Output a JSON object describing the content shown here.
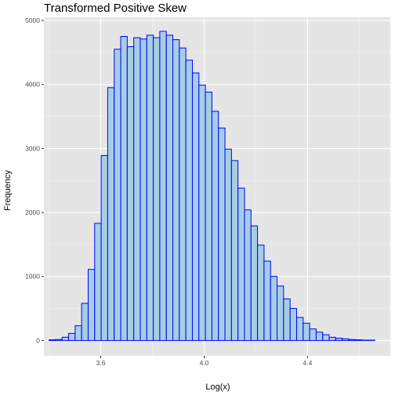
{
  "chart_data": {
    "type": "bar",
    "title": "Transformed Positive Skew",
    "xlabel": "Log(x)",
    "ylabel": "Frequency",
    "xlim": [
      3.38,
      4.72
    ],
    "ylim": [
      -240,
      5050
    ],
    "x_ticks": [
      3.6,
      4.0,
      4.4
    ],
    "x_tick_labels": [
      "3.6",
      "4.0",
      "4.4"
    ],
    "y_ticks": [
      0,
      1000,
      2000,
      3000,
      4000,
      5000
    ],
    "y_tick_labels": [
      "0",
      "1000",
      "2000",
      "3000",
      "4000",
      "5000"
    ],
    "bin_start": 3.4,
    "bin_width": 0.0252,
    "values": [
      10,
      15,
      50,
      110,
      230,
      580,
      1110,
      1830,
      2890,
      3950,
      4550,
      4750,
      4590,
      4730,
      4710,
      4770,
      4730,
      4830,
      4770,
      4700,
      4570,
      4380,
      4180,
      3990,
      3880,
      3580,
      3320,
      2990,
      2810,
      2380,
      2040,
      1790,
      1490,
      1240,
      1000,
      850,
      650,
      500,
      360,
      270,
      180,
      130,
      90,
      50,
      35,
      25,
      15,
      10,
      5,
      5
    ],
    "fill_color": "#a6cee3",
    "stroke_color": "#0000ff",
    "panel_color": "#e5e5e5",
    "grid": true
  }
}
